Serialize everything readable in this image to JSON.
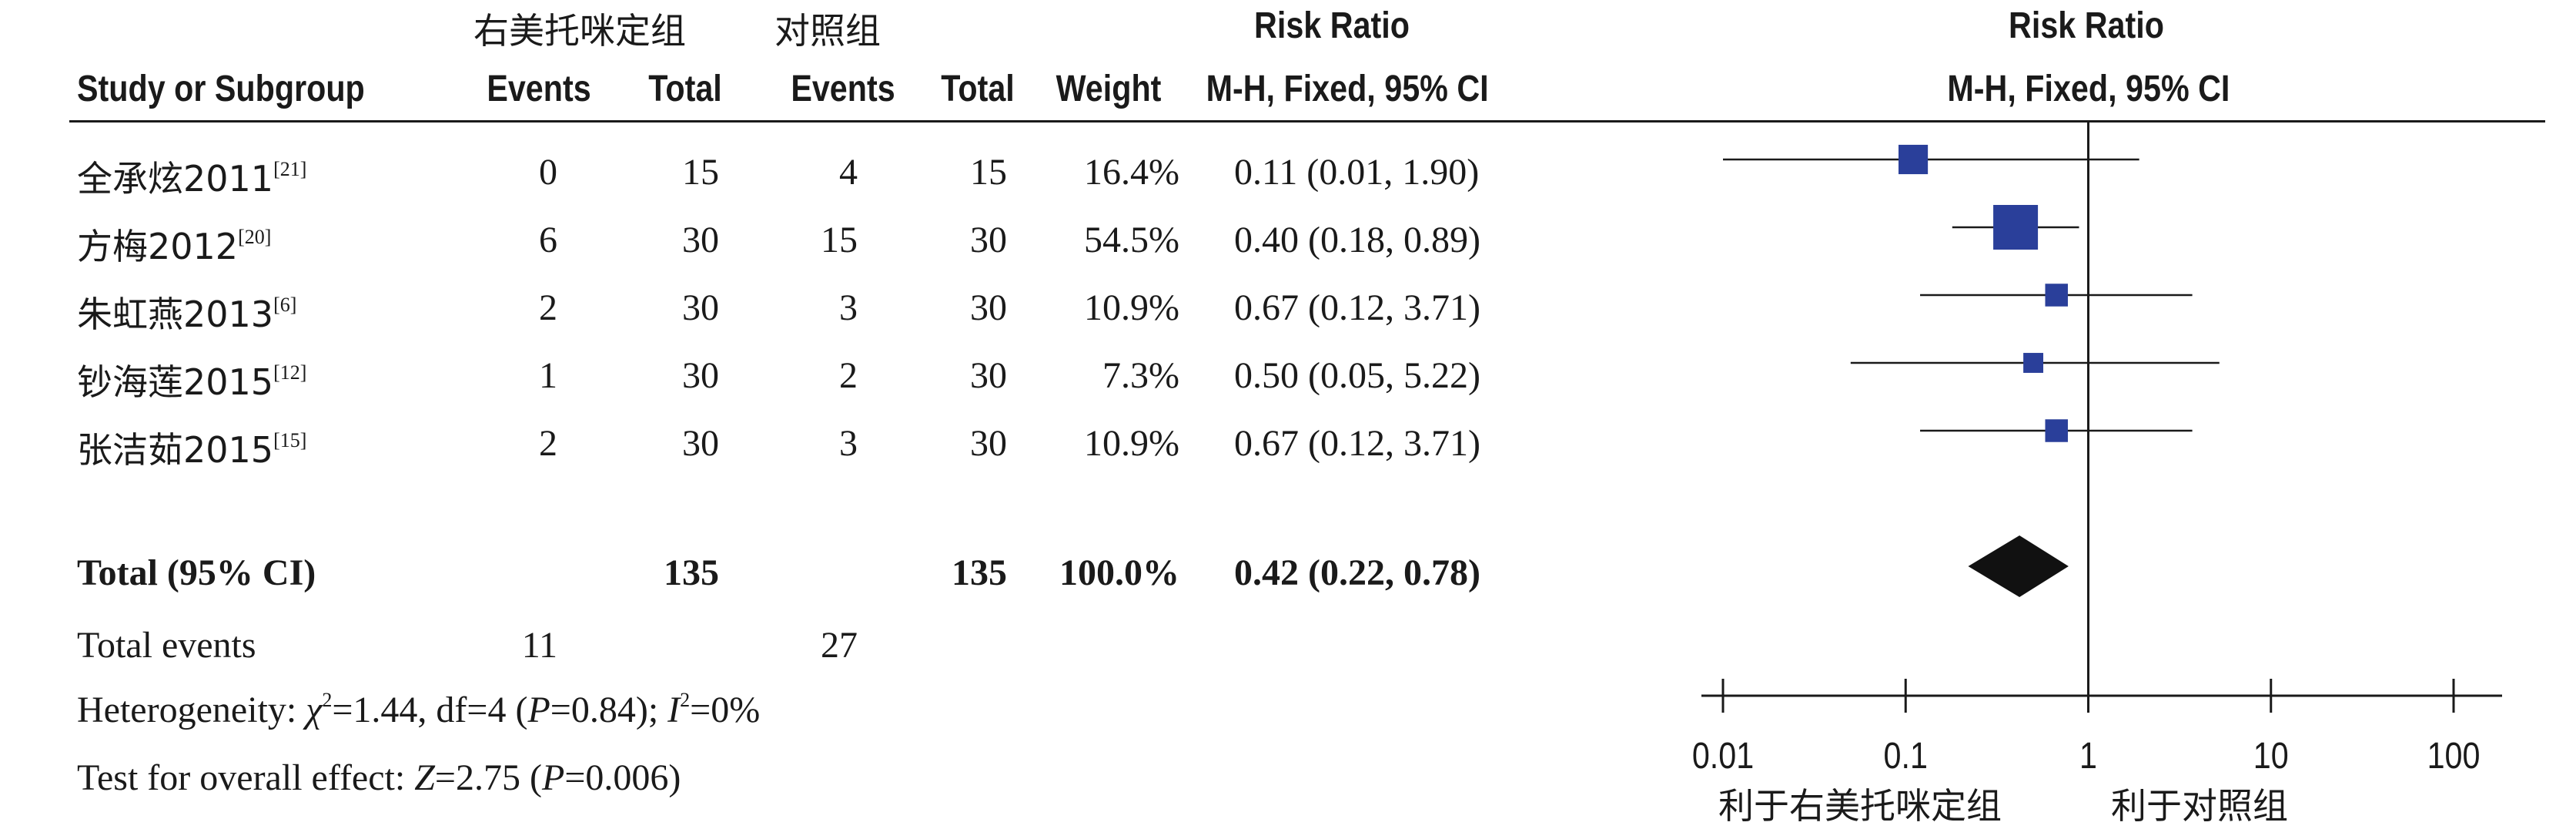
{
  "header": {
    "group_treatment": "右美托咪定组",
    "group_control": "对照组",
    "col_study": "Study or Subgroup",
    "col_events_t": "Events",
    "col_total_t": "Total",
    "col_events_c": "Events",
    "col_total_c": "Total",
    "col_weight": "Weight",
    "col_rr_title": "Risk Ratio",
    "col_rr_method": "M-H, Fixed, 95% CI",
    "plot_title": "Risk Ratio",
    "plot_method": "M-H, Fixed, 95% CI"
  },
  "studies": [
    {
      "name": "全承炫2011",
      "ref": "[21]",
      "events_t": "0",
      "total_t": "15",
      "events_c": "4",
      "total_c": "15",
      "weight": "16.4%",
      "ci": "0.11 (0.01, 1.90)"
    },
    {
      "name": "方梅2012",
      "ref": "[20]",
      "events_t": "6",
      "total_t": "30",
      "events_c": "15",
      "total_c": "30",
      "weight": "54.5%",
      "ci": "0.40 (0.18, 0.89)"
    },
    {
      "name": "朱虹燕2013",
      "ref": "[6]",
      "events_t": "2",
      "total_t": "30",
      "events_c": "3",
      "total_c": "30",
      "weight": "10.9%",
      "ci": "0.67 (0.12, 3.71)"
    },
    {
      "name": "钞海莲2015",
      "ref": "[12]",
      "events_t": "1",
      "total_t": "30",
      "events_c": "2",
      "total_c": "30",
      "weight": "7.3%",
      "ci": "0.50 (0.05, 5.22)"
    },
    {
      "name": "张洁茹2015",
      "ref": "[15]",
      "events_t": "2",
      "total_t": "30",
      "events_c": "3",
      "total_c": "30",
      "weight": "10.9%",
      "ci": "0.67 (0.12, 3.71)"
    }
  ],
  "total": {
    "label": "Total (95% CI)",
    "total_t": "135",
    "total_c": "135",
    "weight": "100.0%",
    "ci": "0.42 (0.22, 0.78)"
  },
  "total_events": {
    "label": "Total events",
    "events_t": "11",
    "events_c": "27"
  },
  "heterogeneity": {
    "prefix": "Heterogeneity: ",
    "chi_symbol": "χ",
    "chi_value": "=1.44, df=4 (",
    "p_symbol": "P",
    "p_value": "=0.84); ",
    "i_symbol": "I",
    "i_value": "=0%"
  },
  "overall_effect": {
    "prefix": "Test for overall effect: ",
    "z_symbol": "Z",
    "z_value": "=2.75 (",
    "p_symbol": "P",
    "p_value": "=0.006)"
  },
  "axis": {
    "favours_treatment": "利于右美托咪定组",
    "favours_control": "利于对照组"
  },
  "chart_data": {
    "type": "scatter",
    "subtype": "forest",
    "x_scale": "log",
    "xlim": [
      0.01,
      100
    ],
    "ticks": [
      0.01,
      0.1,
      1,
      10,
      100
    ],
    "tick_labels": [
      "0.01",
      "0.1",
      "1",
      "10",
      "100"
    ],
    "reference_line": 1,
    "marker_color": "#2a3f9a",
    "points": [
      {
        "label": "全承炫2011",
        "rr": 0.11,
        "lo": 0.01,
        "hi": 1.9,
        "weight": 16.4
      },
      {
        "label": "方梅2012",
        "rr": 0.4,
        "lo": 0.18,
        "hi": 0.89,
        "weight": 54.5
      },
      {
        "label": "朱虹燕2013",
        "rr": 0.67,
        "lo": 0.12,
        "hi": 3.71,
        "weight": 10.9
      },
      {
        "label": "钞海莲2015",
        "rr": 0.5,
        "lo": 0.05,
        "hi": 5.22,
        "weight": 7.3
      },
      {
        "label": "张洁茹2015",
        "rr": 0.67,
        "lo": 0.12,
        "hi": 3.71,
        "weight": 10.9
      }
    ],
    "pooled": {
      "rr": 0.42,
      "lo": 0.22,
      "hi": 0.78
    }
  }
}
